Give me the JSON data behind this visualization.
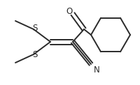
{
  "bg_color": "#ffffff",
  "line_color": "#2a2a2a",
  "line_width": 1.4,
  "figsize": [
    2.0,
    1.22
  ],
  "dpi": 100,
  "font_size": 8.5,
  "xlim": [
    0,
    200
  ],
  "ylim": [
    0,
    122
  ]
}
